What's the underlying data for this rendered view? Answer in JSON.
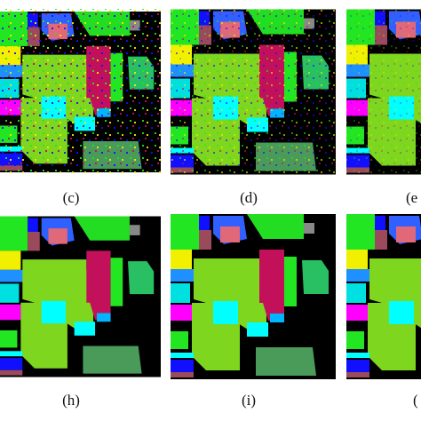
{
  "panels": [
    {
      "label": "(c)"
    },
    {
      "label": "(d)"
    },
    {
      "label": "(e"
    },
    {
      "label": "(h)"
    },
    {
      "label": "(i)"
    },
    {
      "label": "("
    }
  ]
}
